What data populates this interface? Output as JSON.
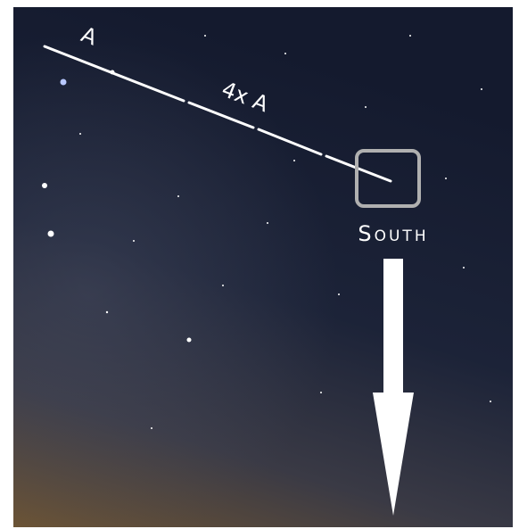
{
  "labels": {
    "segment_a": "A",
    "segment_4a": "4x A",
    "direction": "South"
  }
}
